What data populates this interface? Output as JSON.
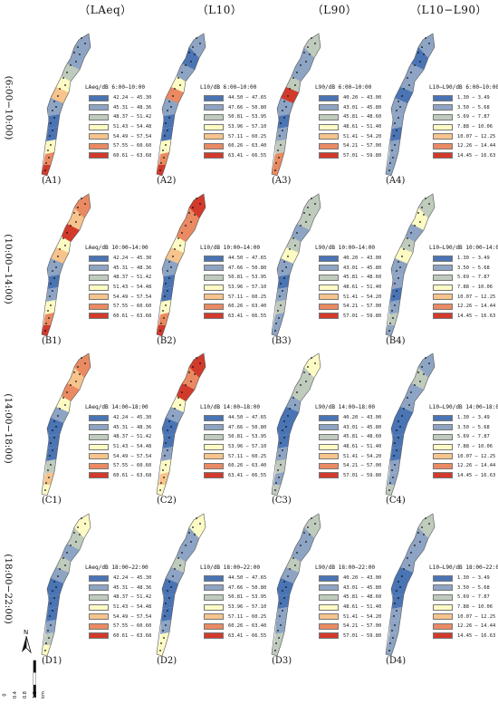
{
  "column_headers": [
    "（LAeq）",
    "（L10）",
    "（L90）",
    "（L10−L90）"
  ],
  "row_labels": [
    "(6:00−10:00)",
    "(10:00−14:00)",
    "(14:00−18:00)",
    "(18:00−22:00)"
  ],
  "legend_colors": [
    "#4a74b4",
    "#8ea4c4",
    "#bfcbbd",
    "#fdfbc4",
    "#f6c48c",
    "#ea8a62",
    "#d23a2c"
  ],
  "legend_ranges": [
    [
      "42.24 − 45.30",
      "45.31 − 48.36",
      "48.37 − 51.42",
      "51.43 − 54.48",
      "54.49 − 57.54",
      "57.55 − 60.60",
      "60.61 − 63.68"
    ],
    [
      "44.50 − 47.65",
      "47.66 − 50.80",
      "50.81 − 53.95",
      "53.96 − 57.10",
      "57.11 − 60.25",
      "60.26 − 63.40",
      "63.41 − 66.55"
    ],
    [
      "40.20 − 43.00",
      "43.01 − 45.80",
      "45.81 − 48.60",
      "48.61 − 51.40",
      "51.41 − 54.20",
      "54.21 − 57.00",
      "57.01 − 59.80"
    ],
    [
      "1.30 − 3.49",
      "3.50 − 5.68",
      "5.69 − 7.87",
      "7.88 − 10.06",
      "10.07 − 12.25",
      "12.26 − 14.44",
      "14.45 − 16.63"
    ]
  ],
  "panels": [
    {
      "label": "(A1)",
      "legend_title": "LAeq/dB 6:00−10:00"
    },
    {
      "label": "(A2)",
      "legend_title": "L10/dB 6:00−10:00"
    },
    {
      "label": "(A3)",
      "legend_title": "L90/dB 6:00−10:00"
    },
    {
      "label": "(A4)",
      "legend_title": "L10−L90/dB 6:00−10:00"
    },
    {
      "label": "(B1)",
      "legend_title": "LAeq/dB 10:00−14:00"
    },
    {
      "label": "(B2)",
      "legend_title": "L10/dB 10:00−14:00"
    },
    {
      "label": "(B3)",
      "legend_title": "L90/dB 10:00−14:00"
    },
    {
      "label": "(B4)",
      "legend_title": "L10−L90/dB 10:00−14:00"
    },
    {
      "label": "(C1)",
      "legend_title": "LAeq/dB 14:00−18:00"
    },
    {
      "label": "(C2)",
      "legend_title": "L10/dB 14:00−18:00"
    },
    {
      "label": "(C3)",
      "legend_title": "L90/dB 14:00−18:00"
    },
    {
      "label": "(C4)",
      "legend_title": "L10−L90/dB 14:00−18:00"
    },
    {
      "label": "(D1)",
      "legend_title": "LAeq/dB 18:00−22:00"
    },
    {
      "label": "(D2)",
      "legend_title": "L10/dB 18:00−22:00"
    },
    {
      "label": "(D3)",
      "legend_title": "L90/dB 18:00−22:00"
    },
    {
      "label": "(D4)",
      "legend_title": "L10−L90/dB 18:00−22:00"
    }
  ],
  "north_label": "N",
  "scale_ticks": [
    "0",
    "0.4",
    "0.8",
    "1.2"
  ],
  "scale_unit": "km"
}
